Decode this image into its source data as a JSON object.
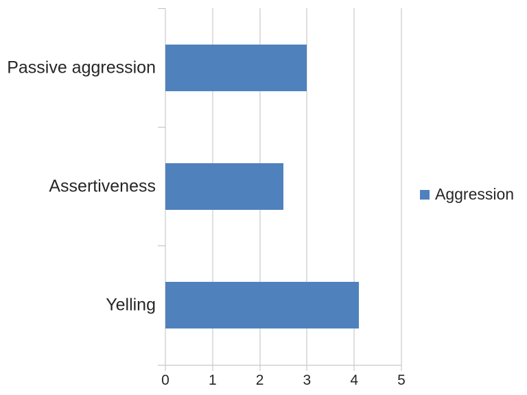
{
  "chart_data": {
    "type": "bar",
    "orientation": "horizontal",
    "title": "",
    "xlabel": "",
    "ylabel": "",
    "categories": [
      "Passive aggression",
      "Assertiveness",
      "Yelling"
    ],
    "series": [
      {
        "name": "Aggression",
        "values": [
          3,
          2.5,
          4.1
        ]
      }
    ],
    "xlim": [
      0,
      5
    ],
    "x_ticks": [
      0,
      1,
      2,
      3,
      4,
      5
    ],
    "grid": "vertical-gridlines-on",
    "legend": {
      "position": "right",
      "label": "Aggression"
    },
    "colors": {
      "bar": "#4F81BD",
      "gridline": "#BFBFBF",
      "text": "#262626",
      "background": "#FFFFFF"
    }
  }
}
